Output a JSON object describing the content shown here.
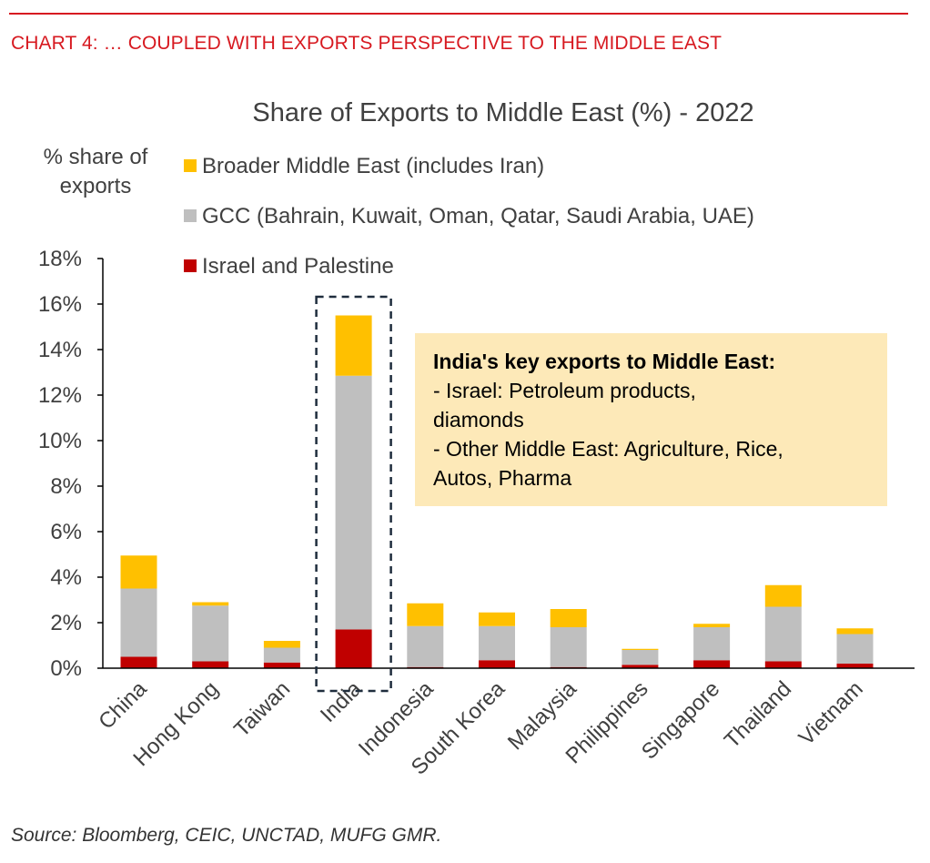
{
  "header": {
    "title": "CHART 4: … COUPLED WITH EXPORTS PERSPECTIVE TO THE MIDDLE EAST"
  },
  "colors": {
    "accent_red": "#d71920",
    "israel_palestine": "#c00000",
    "gcc": "#bfbfbf",
    "broader_me": "#ffc000",
    "callout_bg": "#fde9b8",
    "highlight_box": "#1f2d3d"
  },
  "chart_data": {
    "type": "bar",
    "stacked": true,
    "title": "Share of Exports to Middle East (%) - 2022",
    "ylabel": "% share of exports",
    "ylim": [
      0,
      18
    ],
    "yticks": [
      "0%",
      "2%",
      "4%",
      "6%",
      "8%",
      "10%",
      "12%",
      "14%",
      "16%",
      "18%"
    ],
    "grid": false,
    "legend_position": "top-left",
    "categories": [
      "China",
      "Hong Kong",
      "Taiwan",
      "India",
      "Indonesia",
      "South Korea",
      "Malaysia",
      "Philippines",
      "Singapore",
      "Thailand",
      "Vietnam"
    ],
    "series": [
      {
        "name": "Israel and Palestine",
        "color": "#c00000",
        "values": [
          0.5,
          0.3,
          0.25,
          1.7,
          0.05,
          0.35,
          0.05,
          0.15,
          0.35,
          0.3,
          0.2
        ]
      },
      {
        "name": "GCC (Bahrain, Kuwait, Oman, Qatar, Saudi Arabia, UAE)",
        "color": "#bfbfbf",
        "values": [
          3.0,
          2.45,
          0.65,
          11.15,
          1.8,
          1.5,
          1.75,
          0.65,
          1.45,
          2.4,
          1.3
        ]
      },
      {
        "name": "Broader Middle East (includes Iran)",
        "color": "#ffc000",
        "values": [
          1.45,
          0.15,
          0.3,
          2.65,
          1.0,
          0.6,
          0.8,
          0.05,
          0.15,
          0.95,
          0.25
        ]
      }
    ],
    "legend_order": [
      2,
      1,
      0
    ],
    "highlight_category": "India",
    "annotation": {
      "heading": "India's key exports to Middle East:",
      "lines": [
        "- Israel: Petroleum products,",
        "diamonds",
        "- Other Middle East: Agriculture, Rice,",
        "Autos, Pharma"
      ]
    }
  },
  "source": "Source: Bloomberg, CEIC, UNCTAD, MUFG GMR."
}
